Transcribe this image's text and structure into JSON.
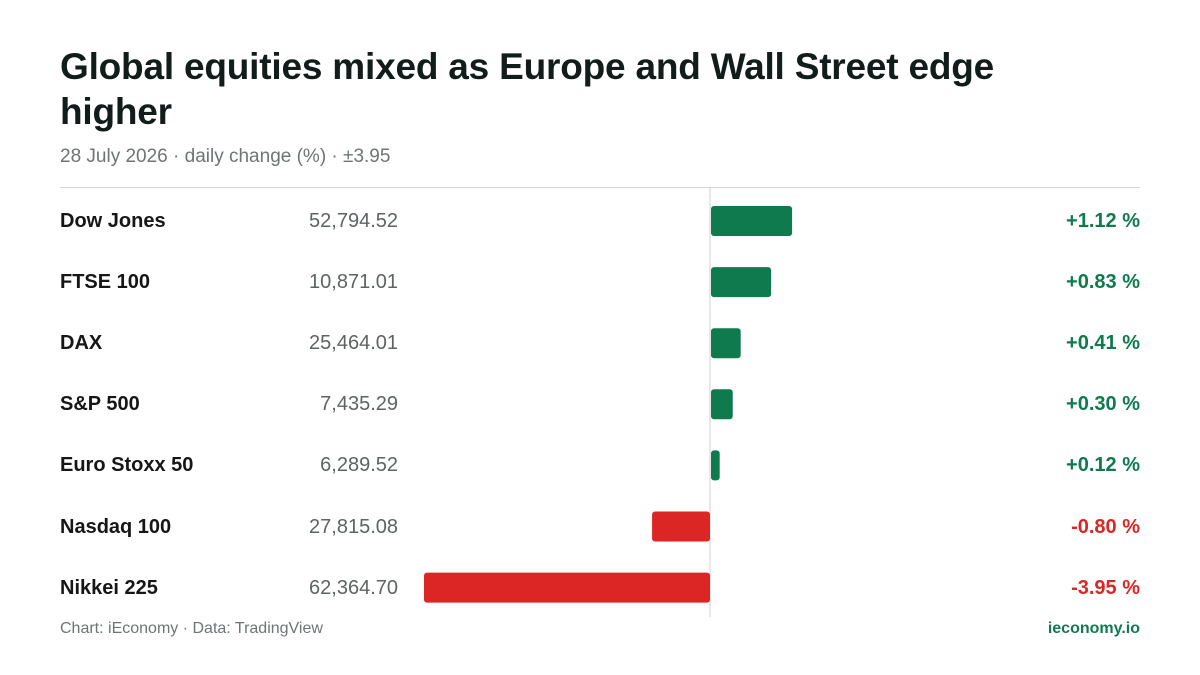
{
  "header": {
    "title": "Global equities mixed as Europe and Wall Street edge higher",
    "subtitle": "28 July 2026 · daily change (%) · ±3.95"
  },
  "footer": {
    "credit": "Chart: iEconomy · Data: TradingView",
    "brand": "ieconomy.io"
  },
  "colors": {
    "positive": "#0e7a4e",
    "negative": "#dc2626",
    "axis": "#d0d0d0"
  },
  "chart_data": {
    "type": "bar",
    "orientation": "horizontal",
    "categories": [
      "Dow Jones",
      "FTSE 100",
      "DAX",
      "S&P 500",
      "Euro Stoxx 50",
      "Nasdaq 100",
      "Nikkei 225"
    ],
    "index_levels": [
      "52,794.52",
      "10,871.01",
      "25,464.01",
      "7,435.29",
      "6,289.52",
      "27,815.08",
      "62,364.70"
    ],
    "values": [
      1.12,
      0.83,
      0.41,
      0.3,
      0.12,
      -0.8,
      -3.95
    ],
    "value_labels": [
      "+1.12 %",
      "+0.83 %",
      "+0.41 %",
      "+0.30 %",
      "+0.12 %",
      "-0.80 %",
      "-3.95 %"
    ],
    "xlim": [
      -3.95,
      3.95
    ],
    "unit": "%"
  }
}
